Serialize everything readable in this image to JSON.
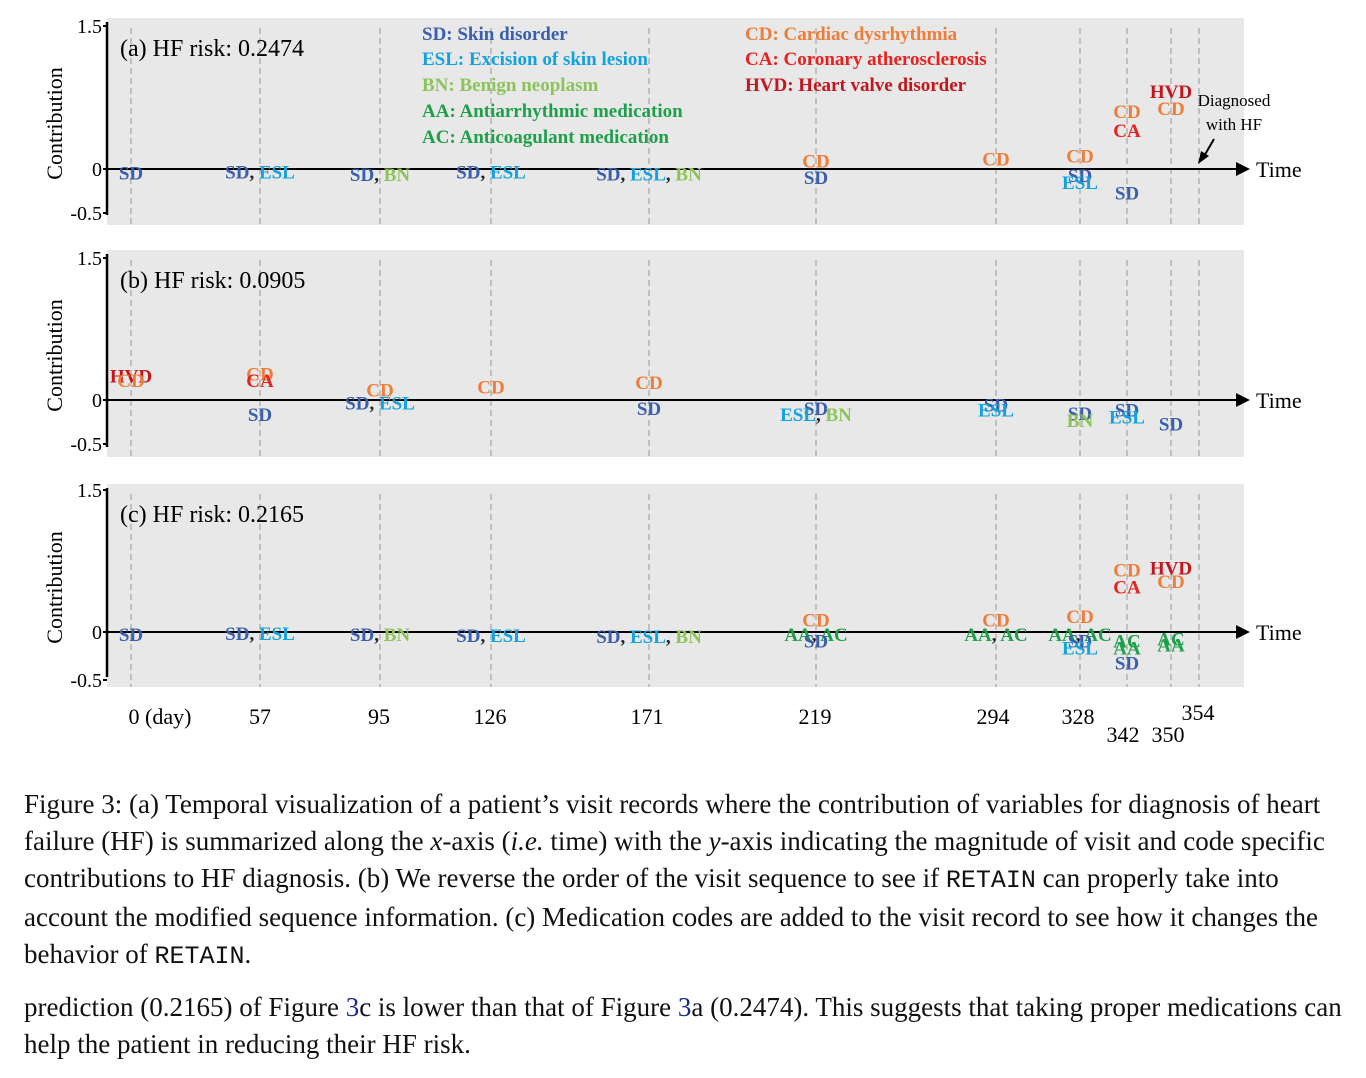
{
  "colors": {
    "SD": "#3a5fad",
    "SD2": "#1f6db5",
    "ESL": "#12a2df",
    "BN": "#8dc45a",
    "AA": "#1ea04a",
    "AC": "#1ea04a",
    "CD": "#ef7d3a",
    "CA": "#e8211f",
    "HVD": "#c4151c",
    "panel_bg": "#e8e8e8",
    "guide": "#aaaaaa"
  },
  "chart_data": {
    "type": "scatter",
    "xlabel": "Time",
    "ylabel": "Contribution",
    "y_ticks": [
      "1.5",
      "0",
      "-0.5"
    ],
    "ylim": [
      -0.5,
      1.5
    ],
    "x_tick_labels": [
      "0 (day)",
      "57",
      "95",
      "126",
      "171",
      "219",
      "294",
      "328",
      "342",
      "350",
      "354"
    ],
    "visit_days": [
      0,
      57,
      95,
      126,
      171,
      219,
      294,
      328,
      342,
      350,
      354
    ],
    "legend": [
      {
        "code": "SD",
        "text": "SD: Skin disorder"
      },
      {
        "code": "ESL",
        "text": "ESL: Excision of skin lesion"
      },
      {
        "code": "BN",
        "text": "BN: Benign neoplasm"
      },
      {
        "code": "AA",
        "text": "AA: Antiarrhythmic medication"
      },
      {
        "code": "AC",
        "text": "AC: Anticoagulant medication"
      },
      {
        "code": "CD",
        "text": "CD: Cardiac dysrhythmia"
      },
      {
        "code": "CA",
        "text": "CA: Coronary atherosclerosis"
      },
      {
        "code": "HVD",
        "text": "HVD: Heart valve disorder"
      }
    ],
    "annotation": "Diagnosed with HF",
    "panels": [
      {
        "title": "(a) HF risk: 0.2474",
        "marks": [
          {
            "day": 0,
            "y": -0.05,
            "codes": [
              "SD"
            ]
          },
          {
            "day": 57,
            "y": -0.04,
            "codes": [
              "SD",
              "ESL"
            ]
          },
          {
            "day": 95,
            "y": -0.07,
            "codes": [
              "SD",
              "BN"
            ]
          },
          {
            "day": 126,
            "y": -0.04,
            "codes": [
              "SD",
              "ESL"
            ]
          },
          {
            "day": 171,
            "y": -0.06,
            "codes": [
              "SD",
              "ESL",
              "BN"
            ]
          },
          {
            "day": 219,
            "y": 0.08,
            "codes": [
              "CD"
            ]
          },
          {
            "day": 219,
            "y": -0.1,
            "codes": [
              "SD"
            ]
          },
          {
            "day": 294,
            "y": 0.1,
            "codes": [
              "CD"
            ]
          },
          {
            "day": 328,
            "y": 0.13,
            "codes": [
              "CD"
            ]
          },
          {
            "day": 328,
            "y": -0.08,
            "codes": [
              "SD"
            ]
          },
          {
            "day": 328,
            "y": -0.16,
            "codes": [
              "ESL"
            ]
          },
          {
            "day": 342,
            "y": 0.6,
            "codes": [
              "CD"
            ]
          },
          {
            "day": 342,
            "y": 0.4,
            "codes": [
              "CA"
            ]
          },
          {
            "day": 342,
            "y": -0.28,
            "codes": [
              "SD"
            ]
          },
          {
            "day": 350,
            "y": 0.81,
            "codes": [
              "HVD"
            ]
          },
          {
            "day": 350,
            "y": 0.63,
            "codes": [
              "CD"
            ]
          }
        ]
      },
      {
        "title": "(b) HF risk: 0.0905",
        "marks": [
          {
            "day": 0,
            "y": 0.25,
            "codes": [
              "HVD"
            ]
          },
          {
            "day": 0,
            "y": 0.2,
            "codes": [
              "CD"
            ]
          },
          {
            "day": 57,
            "y": 0.27,
            "codes": [
              "CD"
            ]
          },
          {
            "day": 57,
            "y": 0.2,
            "codes": [
              "CA"
            ]
          },
          {
            "day": 57,
            "y": -0.17,
            "codes": [
              "SD"
            ]
          },
          {
            "day": 95,
            "y": 0.1,
            "codes": [
              "CD"
            ]
          },
          {
            "day": 95,
            "y": -0.04,
            "codes": [
              "SD",
              "ESL"
            ]
          },
          {
            "day": 126,
            "y": 0.13,
            "codes": [
              "CD"
            ]
          },
          {
            "day": 171,
            "y": 0.18,
            "codes": [
              "CD"
            ]
          },
          {
            "day": 171,
            "y": -0.1,
            "codes": [
              "SD"
            ]
          },
          {
            "day": 219,
            "y": -0.1,
            "codes": [
              "SD"
            ]
          },
          {
            "day": 219,
            "y": -0.17,
            "codes": [
              "ESL",
              "BN"
            ]
          },
          {
            "day": 294,
            "y": -0.06,
            "codes": [
              "SD"
            ]
          },
          {
            "day": 294,
            "y": -0.12,
            "codes": [
              "ESL"
            ]
          },
          {
            "day": 328,
            "y": -0.16,
            "codes": [
              "SD"
            ]
          },
          {
            "day": 328,
            "y": -0.24,
            "codes": [
              "BN"
            ]
          },
          {
            "day": 342,
            "y": -0.12,
            "codes": [
              "SD"
            ]
          },
          {
            "day": 342,
            "y": -0.2,
            "codes": [
              "ESL"
            ]
          },
          {
            "day": 350,
            "y": -0.28,
            "codes": [
              "SD"
            ]
          }
        ]
      },
      {
        "title": "(c) HF risk: 0.2165",
        "marks": [
          {
            "day": 0,
            "y": -0.03,
            "codes": [
              "SD"
            ]
          },
          {
            "day": 57,
            "y": -0.02,
            "codes": [
              "SD",
              "ESL"
            ]
          },
          {
            "day": 95,
            "y": -0.03,
            "codes": [
              "SD",
              "BN"
            ]
          },
          {
            "day": 126,
            "y": -0.04,
            "codes": [
              "SD",
              "ESL"
            ]
          },
          {
            "day": 171,
            "y": -0.05,
            "codes": [
              "SD",
              "ESL",
              "BN"
            ]
          },
          {
            "day": 219,
            "y": 0.12,
            "codes": [
              "CD"
            ]
          },
          {
            "day": 219,
            "y": -0.03,
            "codes": [
              "AA",
              "AC"
            ]
          },
          {
            "day": 219,
            "y": -0.1,
            "codes": [
              "SD"
            ]
          },
          {
            "day": 294,
            "y": 0.12,
            "codes": [
              "CD"
            ]
          },
          {
            "day": 294,
            "y": -0.03,
            "codes": [
              "AA",
              "AC"
            ]
          },
          {
            "day": 328,
            "y": 0.16,
            "codes": [
              "CD"
            ]
          },
          {
            "day": 328,
            "y": -0.03,
            "codes": [
              "AA",
              "AC"
            ]
          },
          {
            "day": 328,
            "y": -0.1,
            "codes": [
              "SD"
            ]
          },
          {
            "day": 328,
            "y": -0.17,
            "codes": [
              "ESL"
            ]
          },
          {
            "day": 342,
            "y": 0.65,
            "codes": [
              "CD"
            ]
          },
          {
            "day": 342,
            "y": 0.47,
            "codes": [
              "CA"
            ]
          },
          {
            "day": 342,
            "y": -0.1,
            "codes": [
              "AC"
            ]
          },
          {
            "day": 342,
            "y": -0.17,
            "codes": [
              "AA"
            ]
          },
          {
            "day": 342,
            "y": -0.33,
            "codes": [
              "SD"
            ]
          },
          {
            "day": 350,
            "y": 0.67,
            "codes": [
              "HVD"
            ]
          },
          {
            "day": 350,
            "y": 0.53,
            "codes": [
              "CD"
            ]
          },
          {
            "day": 350,
            "y": -0.08,
            "codes": [
              "AC"
            ]
          },
          {
            "day": 350,
            "y": -0.14,
            "codes": [
              "AA"
            ]
          }
        ]
      }
    ]
  },
  "caption": {
    "p1": "Figure 3: (a) Temporal visualization of a patient’s visit records where the contribution of variables for diagnosis of heart failure (HF) is summarized along the ",
    "x_var": "x",
    "p2": "-axis (",
    "ie": "i.e.",
    "p3": " time) with the ",
    "y_var": "y",
    "p4": "-axis indicating the magnitude of visit and code specific contributions to HF diagnosis. (b) We reverse the order of the visit sequence to see if ",
    "retain1": "RETAIN",
    "p5": " can properly take into account the modified sequence information. (c) Medication codes are added to the visit record to see how it changes the behavior of ",
    "retain2": "RETAIN",
    "p6": "."
  },
  "body": {
    "t1": "prediction (0.2165) of Figure ",
    "ref1": "3",
    "t2": "c is lower than that of Figure ",
    "ref2": "3",
    "t3": "a (0.2474). This suggests that taking proper medications can help the patient in reducing their HF risk."
  }
}
